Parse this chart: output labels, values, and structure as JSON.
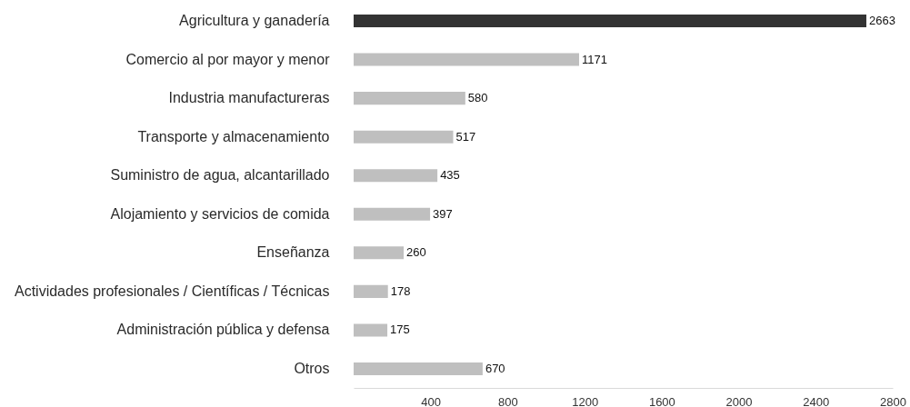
{
  "chart_data": {
    "type": "bar",
    "orientation": "horizontal",
    "categories": [
      "Agricultura y ganadería",
      "Comercio al por mayor y menor",
      "Industria manufactureras",
      "Transporte y almacenamiento",
      "Suministro de agua, alcantarillado",
      "Alojamiento y servicios de comida",
      "Enseñanza",
      "Actividades profesionales / Científicas / Técnicas",
      "Administración pública y defensa",
      "Otros"
    ],
    "values": [
      2663,
      1171,
      580,
      517,
      435,
      397,
      260,
      178,
      175,
      670
    ],
    "colors": [
      "#333333",
      "#bfbfbf",
      "#bfbfbf",
      "#bfbfbf",
      "#bfbfbf",
      "#bfbfbf",
      "#bfbfbf",
      "#bfbfbf",
      "#bfbfbf",
      "#bfbfbf"
    ],
    "xlim": [
      0,
      2800
    ],
    "xticks": [
      400,
      800,
      1200,
      1600,
      2000,
      2400,
      2800
    ],
    "data_labels": true
  }
}
